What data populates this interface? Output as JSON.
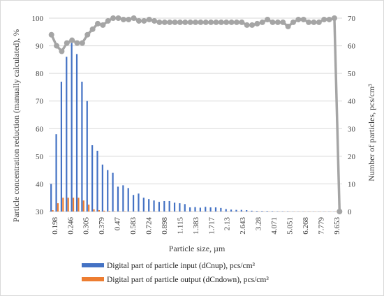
{
  "chart_data": {
    "type": "bar",
    "xlabel": "Particle size, µm",
    "ylabel_left": "Particle concentration reduction (manually calculated), %",
    "ylabel_right": "Number of particles, pcs/cm³",
    "ylim_left": [
      30,
      100
    ],
    "yticks_left": [
      30,
      40,
      50,
      60,
      70,
      80,
      90,
      100
    ],
    "ylim_right": [
      0,
      70
    ],
    "yticks_right": [
      0,
      10,
      20,
      30,
      40,
      50,
      60,
      70
    ],
    "grid": true,
    "legend_position": "bottom",
    "x_tick_labels": [
      "0.198",
      "0.246",
      "0.305",
      "0.379",
      "0.47",
      "0.583",
      "0.724",
      "0.898",
      "1.115",
      "1.383",
      "1.717",
      "2.13",
      "2.643",
      "3.28",
      "4.071",
      "5.051",
      "6.268",
      "7.779",
      "9.653"
    ],
    "series": [
      {
        "name": "Digital part of particle input (dCnup), pcs/cm³",
        "kind": "bar",
        "axis": "right",
        "color": "#4472C4",
        "values": [
          10,
          28,
          47,
          56,
          61,
          57,
          47,
          40,
          24,
          22,
          17,
          15,
          14,
          9,
          9.5,
          8.5,
          6,
          6.5,
          5,
          4.5,
          4,
          3.5,
          3.8,
          3.8,
          3.2,
          3,
          2.7,
          1.5,
          1.6,
          1.4,
          1.7,
          1.5,
          1.5,
          1.3,
          0.9,
          0.7,
          0.6,
          0.6,
          0.5,
          0.3,
          0.2,
          0.2,
          0.2,
          0.15,
          0.1,
          0.1,
          0.1,
          0.05,
          0.05,
          0.05,
          0.05,
          0.05,
          0.05,
          0.05,
          0.05,
          0.05,
          0.05
        ]
      },
      {
        "name": "Digital part of particle output (dCndown), pcs/cm³",
        "kind": "bar",
        "axis": "right",
        "color": "#ED7D31",
        "values": [
          0.5,
          3,
          5,
          5,
          5,
          5,
          4,
          2.5,
          0.8,
          0.5,
          0.3,
          0.2,
          0.1,
          0.1,
          0.1,
          0.05,
          0.05,
          0.05,
          0.05,
          0.05,
          0.05,
          0.05,
          0.05,
          0.05,
          0.05,
          0.05,
          0.05,
          0.05,
          0.05,
          0.05,
          0.05,
          0.05,
          0.05,
          0.05,
          0.05,
          0.05,
          0.05,
          0.05,
          0.05,
          0.05,
          0.05,
          0.05,
          0.05,
          0.05,
          0.05,
          0.05,
          0.05,
          0.05,
          0.05,
          0.05,
          0.05,
          0.05,
          0.05,
          0.05,
          0.05,
          0.05,
          0.05
        ]
      },
      {
        "name": "",
        "kind": "line",
        "axis": "left",
        "color": "#A5A5A5",
        "values": [
          94,
          90,
          88,
          91,
          92,
          91,
          91,
          94,
          96,
          98,
          97.5,
          99,
          100,
          100,
          99.5,
          99.5,
          100,
          99,
          99,
          99.5,
          99,
          98.5,
          98.5,
          98.5,
          98.5,
          98.5,
          98.5,
          98.5,
          98.5,
          98.5,
          98.5,
          98.5,
          98.5,
          98.5,
          98.5,
          98.5,
          98.5,
          98.5,
          97.5,
          97.5,
          98,
          98.5,
          99.5,
          98.5,
          98.5,
          98.5,
          97,
          98.5,
          99.5,
          99.5,
          98.5,
          98.5,
          98.5,
          99.5,
          99.5,
          100,
          30
        ]
      }
    ]
  }
}
